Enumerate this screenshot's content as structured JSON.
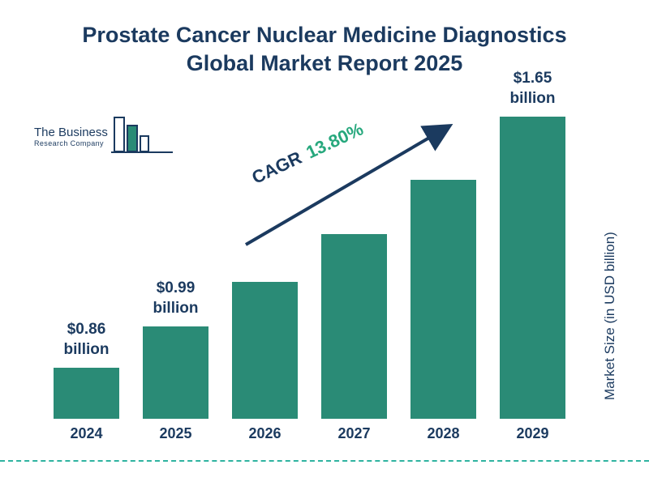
{
  "page": {
    "title_line1": "Prostate Cancer Nuclear Medicine Diagnostics",
    "title_line2": "Global Market Report 2025"
  },
  "logo": {
    "line1": "The Business",
    "line2": "Research Company"
  },
  "chart_data": {
    "type": "bar",
    "title": "Prostate Cancer Nuclear Medicine Diagnostics Global Market Report 2025",
    "categories": [
      "2024",
      "2025",
      "2026",
      "2027",
      "2028",
      "2029"
    ],
    "values": [
      0.86,
      0.99,
      1.13,
      1.28,
      1.45,
      1.65
    ],
    "bar_labels": [
      "$0.86\nbillion",
      "$0.99\nbillion",
      null,
      null,
      null,
      "$1.65\nbillion"
    ],
    "xlabel": "",
    "ylabel": "Market Size (in USD billion)",
    "ylim": [
      0,
      1.8
    ],
    "grid": false,
    "legend": false,
    "bar_color": "#2A8B76",
    "annotation": {
      "cagr_label": "CAGR",
      "cagr_value": "13.80%"
    }
  },
  "colors": {
    "title_navy": "#1B3A5F",
    "bar_teal": "#2A8B76",
    "cagr_green": "#27A87D",
    "arrow_navy": "#1B3A5F",
    "dashed_line_teal": "#2FB3A0"
  }
}
